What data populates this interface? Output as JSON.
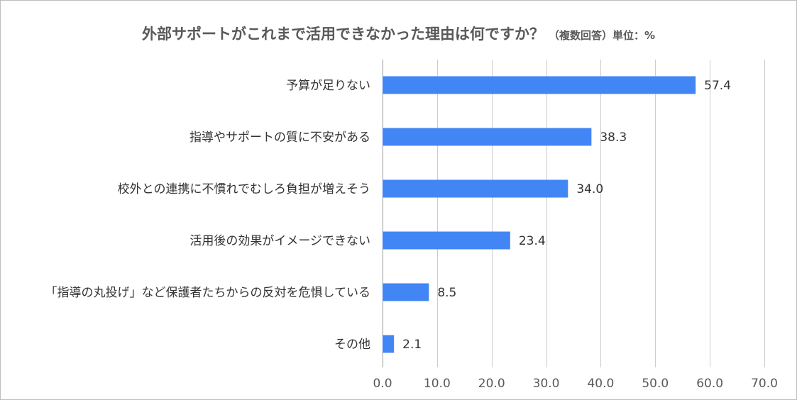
{
  "chart_data": {
    "type": "bar",
    "orientation": "horizontal",
    "title": "外部サポートがこれまで活用できなかった理由は何ですか？",
    "subtitle": "（複数回答）単位：%",
    "categories": [
      "予算が足りない",
      "指導やサポートの質に不安がある",
      "校外との連携に不慣れでむしろ負担が増えそう",
      "活用後の効果がイメージできない",
      "「指導の丸投げ」など保護者たちからの反対を危惧している",
      "その他"
    ],
    "values": [
      57.4,
      38.3,
      34.0,
      23.4,
      8.5,
      2.1
    ],
    "value_labels": [
      "57.4",
      "38.3",
      "34.0",
      "23.4",
      "8.5",
      "2.1"
    ],
    "xlim": [
      0,
      70
    ],
    "x_ticks": [
      0,
      10,
      20,
      30,
      40,
      50,
      60,
      70
    ],
    "x_tick_labels": [
      "0.0",
      "10.0",
      "20.0",
      "30.0",
      "40.0",
      "50.0",
      "60.0",
      "70.0"
    ],
    "grid": true,
    "bar_color": "#4285f4",
    "grid_color": "#cccccc"
  }
}
